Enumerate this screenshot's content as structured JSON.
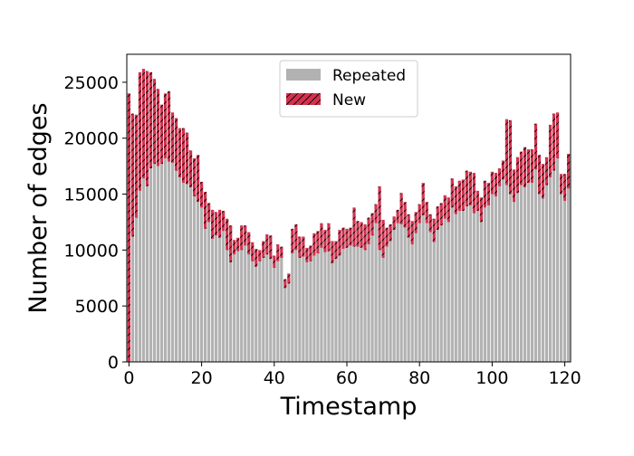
{
  "chart_data": {
    "type": "bar",
    "stacked": true,
    "xlabel": "Timestamp",
    "ylabel": "Number of edges",
    "xlim": [
      -0.6,
      121.6
    ],
    "ylim": [
      0,
      27500
    ],
    "xticks": [
      0,
      20,
      40,
      60,
      80,
      100,
      120
    ],
    "yticks": [
      0,
      5000,
      10000,
      15000,
      20000,
      25000
    ],
    "legend_position": "top-center",
    "x": [
      0,
      1,
      2,
      3,
      4,
      5,
      6,
      7,
      8,
      9,
      10,
      11,
      12,
      13,
      14,
      15,
      16,
      17,
      18,
      19,
      20,
      21,
      22,
      23,
      24,
      25,
      26,
      27,
      28,
      29,
      30,
      31,
      32,
      33,
      34,
      35,
      36,
      37,
      38,
      39,
      40,
      41,
      42,
      43,
      44,
      45,
      46,
      47,
      48,
      49,
      50,
      51,
      52,
      53,
      54,
      55,
      56,
      57,
      58,
      59,
      60,
      61,
      62,
      63,
      64,
      65,
      66,
      67,
      68,
      69,
      70,
      71,
      72,
      73,
      74,
      75,
      76,
      77,
      78,
      79,
      80,
      81,
      82,
      83,
      84,
      85,
      86,
      87,
      88,
      89,
      90,
      91,
      92,
      93,
      94,
      95,
      96,
      97,
      98,
      99,
      100,
      101,
      102,
      103,
      104,
      105,
      106,
      107,
      108,
      109,
      110,
      111,
      112,
      113,
      114,
      115,
      116,
      117,
      118,
      119,
      120,
      121
    ],
    "series": [
      {
        "name": "Repeated",
        "color": "#b2b2b2",
        "values": [
          0,
          11200,
          12900,
          15300,
          16400,
          15700,
          17300,
          17700,
          17500,
          17700,
          18200,
          17900,
          17800,
          17100,
          16500,
          16000,
          15900,
          15600,
          14800,
          14300,
          13800,
          11900,
          12500,
          11000,
          11300,
          11100,
          11700,
          10000,
          8900,
          9600,
          9900,
          10000,
          10400,
          9600,
          9000,
          8500,
          9000,
          9300,
          9600,
          9200,
          8400,
          9000,
          9300,
          6600,
          7000,
          9700,
          10000,
          9300,
          9400,
          8900,
          9000,
          9500,
          9700,
          10200,
          9800,
          9900,
          8800,
          9200,
          9500,
          10100,
          10200,
          10400,
          10300,
          10300,
          10200,
          10000,
          10500,
          11300,
          12400,
          10000,
          9300,
          10300,
          10800,
          11800,
          12400,
          12300,
          12000,
          11100,
          10500,
          11500,
          12400,
          13100,
          12400,
          11600,
          10700,
          11800,
          12200,
          12800,
          12500,
          13800,
          13200,
          13500,
          13500,
          13900,
          14000,
          13300,
          13500,
          12500,
          13800,
          14000,
          15000,
          14800,
          15700,
          16300,
          15800,
          15000,
          14300,
          15100,
          15800,
          15600,
          16000,
          16000,
          17200,
          15000,
          14600,
          15800,
          16500,
          17100,
          18200,
          15000,
          14400,
          15500
        ]
      },
      {
        "name": "New",
        "color": "#d2324e",
        "values": [
          24000,
          11000,
          9200,
          10600,
          9800,
          10300,
          8600,
          7600,
          6900,
          5300,
          5800,
          6300,
          4500,
          4700,
          4400,
          4900,
          4600,
          3300,
          3400,
          4200,
          2300,
          3300,
          1700,
          2600,
          2100,
          2500,
          1800,
          2800,
          3300,
          1300,
          1200,
          2200,
          1800,
          2000,
          1700,
          1600,
          1000,
          1500,
          1800,
          2100,
          1100,
          1500,
          1000,
          800,
          900,
          2200,
          2300,
          1900,
          1800,
          1300,
          1400,
          2000,
          2000,
          2200,
          2000,
          2500,
          2000,
          1600,
          2300,
          1900,
          1700,
          1600,
          3500,
          2300,
          2300,
          2300,
          2400,
          2000,
          1700,
          5700,
          3400,
          1700,
          1500,
          1200,
          1200,
          2800,
          2300,
          2100,
          2100,
          1900,
          1700,
          2900,
          1900,
          1600,
          2100,
          2100,
          2000,
          2100,
          2200,
          2600,
          2500,
          2700,
          2800,
          3200,
          3000,
          3600,
          1800,
          2200,
          2400,
          2000,
          2000,
          2100,
          1600,
          1700,
          5900,
          6600,
          2900,
          3200,
          3000,
          3600,
          3000,
          3000,
          4100,
          3500,
          3100,
          2500,
          4700,
          5100,
          4100,
          1800,
          2400,
          3100
        ]
      }
    ]
  }
}
